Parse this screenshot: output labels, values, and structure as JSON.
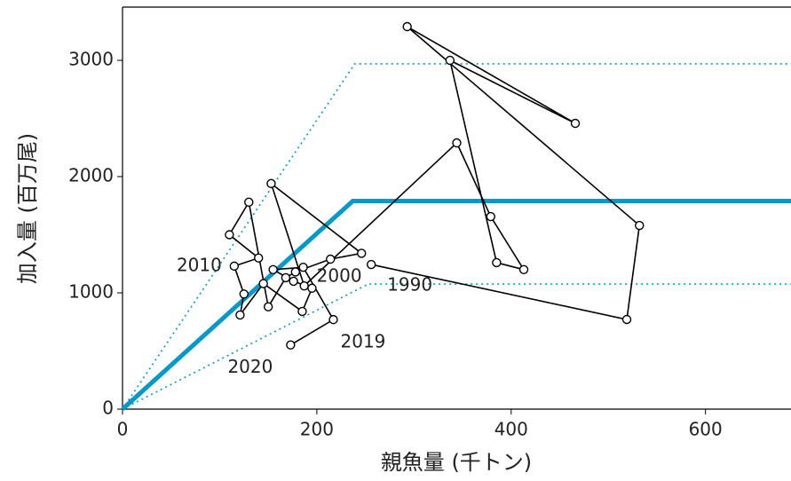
{
  "chart_data": {
    "type": "stock-recruitment",
    "x_label": "親魚量 (千トン)",
    "y_label": "加入量 (百万尾)",
    "xlim": [
      0,
      688
    ],
    "ylim": [
      0,
      3458
    ],
    "xticks": [
      0,
      200,
      400,
      600
    ],
    "yticks": [
      0,
      1000,
      2000,
      3000
    ],
    "x": [
      256,
      519,
      532,
      293,
      466,
      337,
      385,
      413,
      379,
      344,
      187,
      153,
      246,
      214,
      178,
      168,
      150,
      130,
      110,
      140,
      115,
      125,
      121,
      145,
      185,
      195,
      176,
      155,
      186,
      217,
      173
    ],
    "y": [
      1244,
      771,
      1580,
      3290,
      2458,
      3000,
      1260,
      1200,
      1656,
      2290,
      1060,
      1940,
      1340,
      1290,
      1180,
      1130,
      880,
      1780,
      1500,
      1300,
      1230,
      990,
      810,
      1080,
      840,
      1040,
      1100,
      1200,
      1220,
      770,
      552
    ],
    "point_labels": [
      "1990",
      null,
      null,
      null,
      null,
      null,
      null,
      null,
      null,
      null,
      "2000",
      null,
      null,
      null,
      null,
      null,
      null,
      null,
      null,
      null,
      "2010",
      null,
      null,
      null,
      null,
      null,
      null,
      null,
      null,
      "2019",
      "2020"
    ],
    "line_color": "#000000",
    "fit": {
      "color": "#0099cc",
      "x": [
        0,
        237,
        688
      ],
      "y": [
        0,
        1790,
        1790
      ]
    },
    "bands": [
      {
        "color": "#0099cc",
        "x": [
          0,
          239,
          688
        ],
        "y": [
          0,
          2970,
          2970
        ]
      },
      {
        "color": "#0099cc",
        "x": [
          0,
          253,
          688
        ],
        "y": [
          0,
          1076,
          1076
        ]
      }
    ]
  }
}
